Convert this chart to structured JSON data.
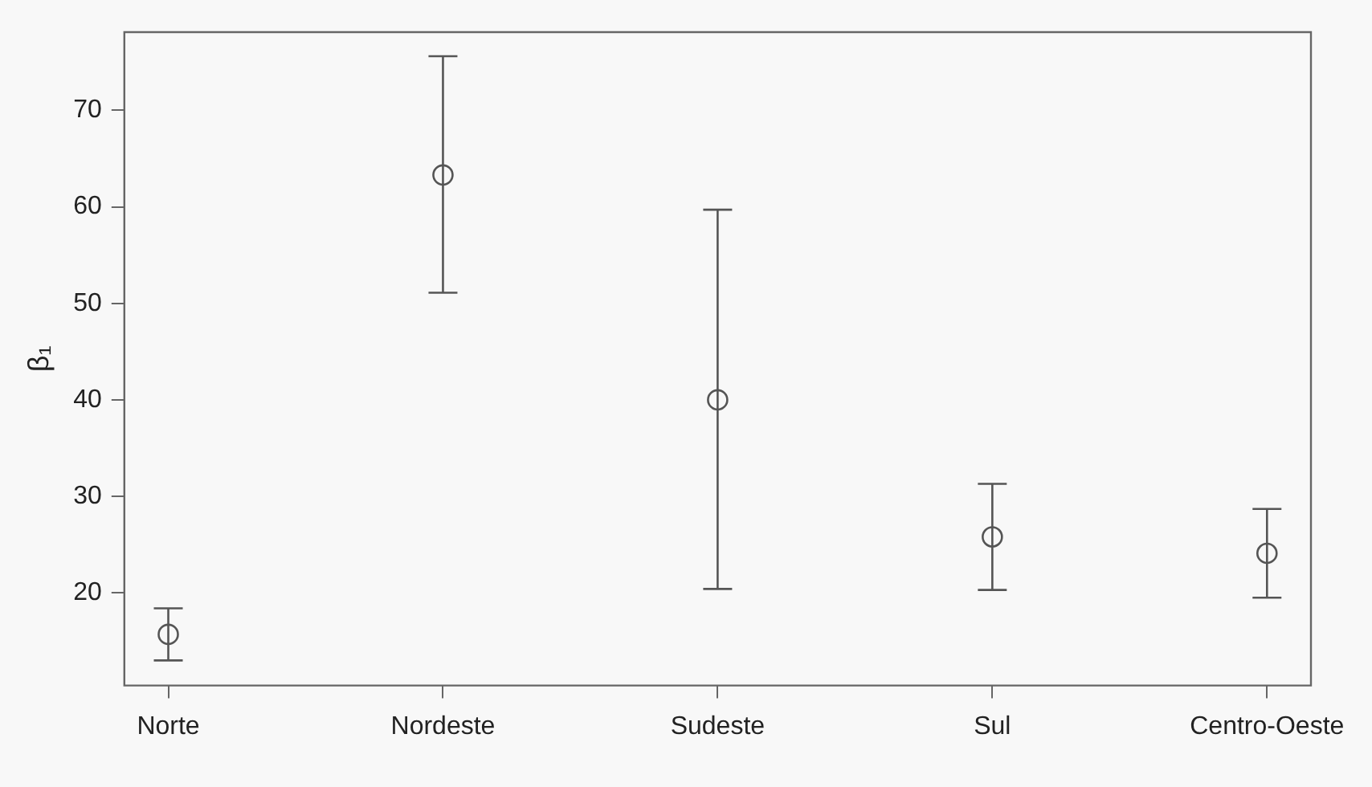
{
  "chart_data": {
    "type": "scatter",
    "ylabel": "β₁",
    "categories": [
      "Norte",
      "Nordeste",
      "Sudeste",
      "Sul",
      "Centro-Oeste"
    ],
    "values": [
      15.7,
      63.3,
      40.0,
      25.8,
      24.1
    ],
    "errors": [
      [
        13.0,
        18.4
      ],
      [
        51.1,
        75.6
      ],
      [
        20.4,
        59.7
      ],
      [
        20.3,
        31.3
      ],
      [
        19.5,
        28.7
      ]
    ],
    "color": "#555555",
    "marker": "circle",
    "grid": false,
    "legend": false,
    "ylim": [
      10.4,
      78.1
    ],
    "yticks": [
      20,
      30,
      40,
      50,
      60,
      70
    ]
  }
}
